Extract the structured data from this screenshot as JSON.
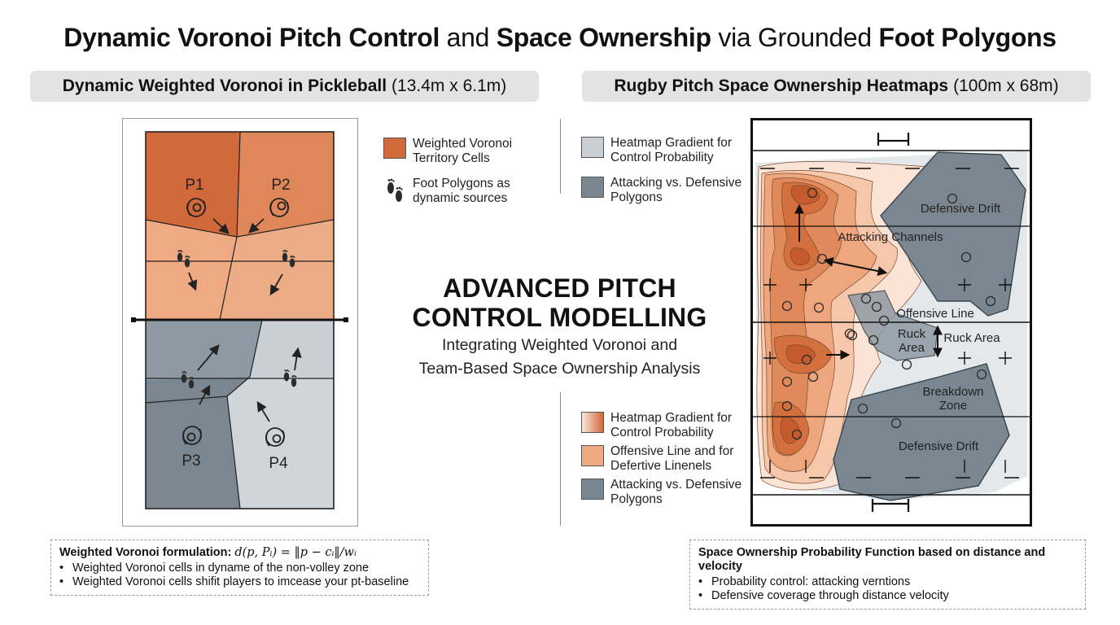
{
  "title": {
    "part1": "Dynamic Voronoi Pitch Control",
    "part2": " and ",
    "part3": "Space Ownership",
    "part4": " via Grounded ",
    "part5": "Foot Polygons"
  },
  "left_section": {
    "title_bold": "Dynamic Weighted Voronoi in Pickleball",
    "title_dims": "(13.4m x 6.1m)",
    "players": [
      "P1",
      "P2",
      "P3",
      "P4"
    ],
    "legend": [
      {
        "label": "Weighted Voronoi Territory Cells",
        "swatch": "#d2693a"
      },
      {
        "label": "Foot Polygons as dynamic sources",
        "icon": "footprints-icon"
      }
    ],
    "note": {
      "title": "Weighted Voronoi formulation:",
      "formula": "d(p, Pᵢ) = ‖p − cᵢ‖/wᵢ",
      "bullets": [
        "Weighted Voronoi cells in dyname of the non-volley zone",
        "Weighted Voronoi cells shifit players to imcease your pt-baseline"
      ]
    }
  },
  "center": {
    "heading_line1": "ADVANCED PITCH",
    "heading_line2": "CONTROL MODELLING",
    "sub_line1": "Integrating Weighted Voronoi and",
    "sub_line2": "Team-Based Space Ownership Analysis"
  },
  "right_section": {
    "title_bold": "Rugby Pitch Space Ownership Heatmaps",
    "title_dims": "(100m x 68m)",
    "legend_top": [
      {
        "label": "Heatmap Gradient for Control Probability",
        "swatch": "#c9cfd4"
      },
      {
        "label": "Attacking vs. Defensive Polygons",
        "swatch": "#7a8791"
      }
    ],
    "legend_bottom": [
      {
        "label": "Heatmap Gradient for Control Probability",
        "swatch": "gradient"
      },
      {
        "label": "Offensive Line and for Defertive Linenels",
        "swatch": "#efa983"
      },
      {
        "label": "Attacking vs. Defensive Polygons",
        "swatch": "#7a8791"
      }
    ],
    "pitch_labels": {
      "defensive_drift_top": "Defensive Drift",
      "attacking_channels": "Attacking Channels",
      "offensive_line": "Offensive Line",
      "ruck_area_inner_1": "Ruck",
      "ruck_area_inner_2": "Area",
      "ruck_area": "Ruck Area",
      "breakdown_1": "Breakdown",
      "breakdown_2": "Zone",
      "defensive_drift_bottom": "Defensive Drift"
    },
    "note": {
      "title": "Space Ownership Probability Function based on distance and velocity",
      "bullets": [
        "Probability control: attacking verntions",
        "Defensive coverage through distance velocity"
      ]
    }
  },
  "colors": {
    "dark_orange": "#d2693a",
    "mid_orange": "#e0875a",
    "light_orange": "#efa983",
    "dark_gray": "#7a8791",
    "light_gray": "#c9cfd4"
  }
}
